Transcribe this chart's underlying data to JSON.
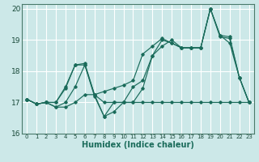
{
  "title": "",
  "xlabel": "Humidex (Indice chaleur)",
  "ylabel": "",
  "xlim": [
    -0.5,
    23.5
  ],
  "ylim": [
    16,
    20.15
  ],
  "yticks": [
    16,
    17,
    18,
    19,
    20
  ],
  "xticks": [
    0,
    1,
    2,
    3,
    4,
    5,
    6,
    7,
    8,
    9,
    10,
    11,
    12,
    13,
    14,
    15,
    16,
    17,
    18,
    19,
    20,
    21,
    22,
    23
  ],
  "bg_color": "#cce8e8",
  "grid_color": "#ffffff",
  "line_color": "#1a6b5a",
  "lines": [
    [
      17.1,
      16.95,
      17.0,
      17.0,
      17.5,
      18.2,
      18.2,
      17.2,
      16.55,
      17.0,
      17.0,
      17.5,
      17.7,
      18.5,
      19.0,
      18.9,
      18.75,
      18.75,
      18.75,
      20.0,
      19.15,
      18.9,
      17.8,
      17.0
    ],
    [
      17.1,
      16.95,
      17.0,
      17.0,
      17.45,
      18.2,
      18.25,
      17.25,
      17.35,
      17.45,
      17.55,
      17.7,
      18.55,
      18.8,
      19.05,
      18.9,
      18.75,
      18.75,
      18.75,
      20.0,
      19.15,
      19.1,
      17.8,
      17.0
    ],
    [
      17.1,
      16.95,
      17.0,
      16.85,
      16.85,
      17.0,
      17.25,
      17.25,
      17.0,
      17.0,
      17.0,
      17.0,
      17.0,
      17.0,
      17.0,
      17.0,
      17.0,
      17.0,
      17.0,
      17.0,
      17.0,
      17.0,
      17.0,
      17.0
    ],
    [
      17.1,
      16.95,
      17.0,
      16.85,
      17.0,
      17.5,
      18.2,
      17.25,
      16.55,
      16.7,
      17.0,
      17.0,
      17.45,
      18.5,
      18.8,
      19.0,
      18.75,
      18.75,
      18.75,
      20.0,
      19.1,
      19.05,
      17.8,
      17.0
    ]
  ]
}
